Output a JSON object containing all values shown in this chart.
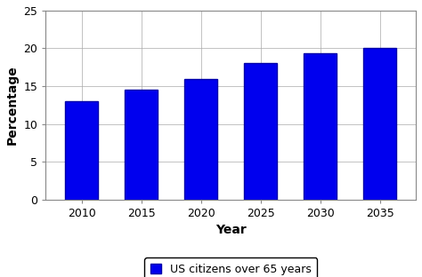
{
  "categories": [
    "2010",
    "2015",
    "2020",
    "2025",
    "2030",
    "2035"
  ],
  "values": [
    13.0,
    14.5,
    16.0,
    18.0,
    19.3,
    20.0
  ],
  "bar_color": "#0000EE",
  "bar_edgecolor": "#0000AA",
  "xlabel": "Year",
  "ylabel": "Percentage",
  "ylim": [
    0,
    25
  ],
  "yticks": [
    0,
    5,
    10,
    15,
    20,
    25
  ],
  "legend_label": "US citizens over 65 years",
  "legend_facecolor": "#ffffff",
  "legend_edgecolor": "#000000",
  "background_color": "#ffffff",
  "plot_bg_color": "#ffffff",
  "grid_color": "#aaaaaa",
  "xlabel_fontsize": 10,
  "ylabel_fontsize": 10,
  "tick_fontsize": 9,
  "legend_fontsize": 9,
  "bar_width": 0.55
}
